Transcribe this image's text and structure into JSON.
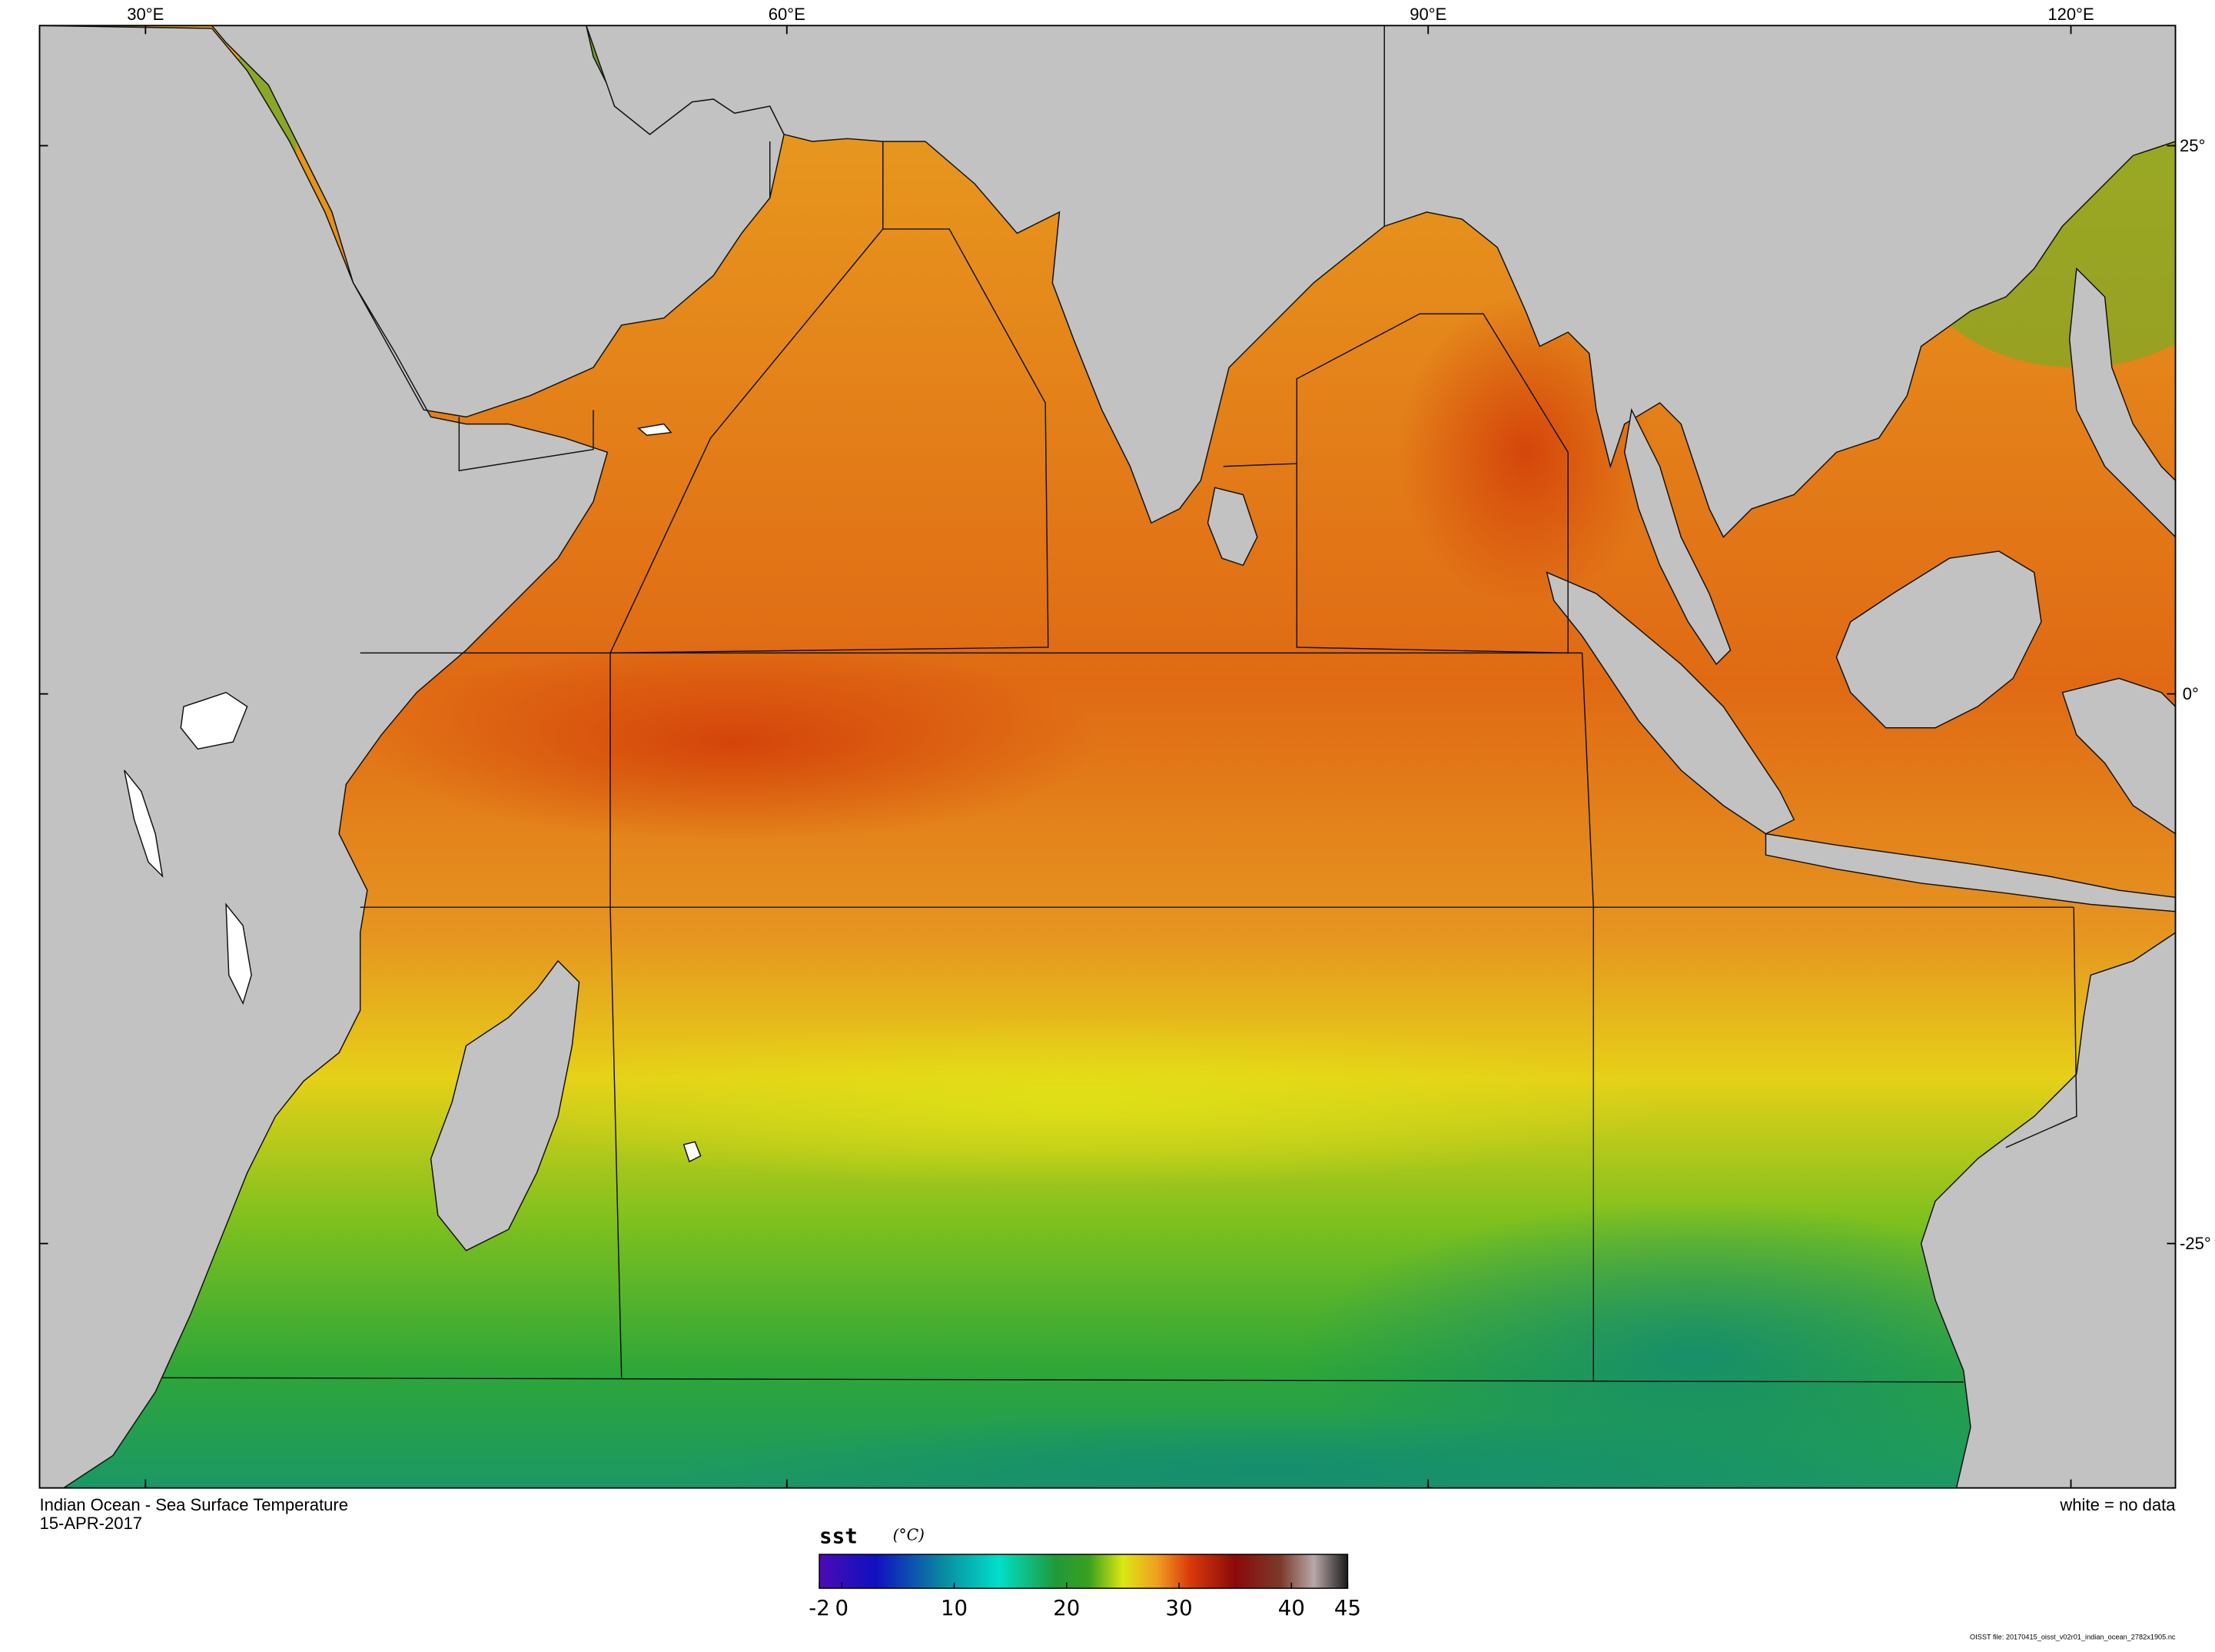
{
  "title": "Indian Ocean - Sea Surface Temperature",
  "date": "15-APR-2017",
  "no_data_note": "white = no data",
  "source_file": "OISST file: 20170415_oisst_v02r01_indian_ocean_2782x1905.nc",
  "longitude_ticks": [
    "30°E",
    "60°E",
    "90°E",
    "120°E"
  ],
  "latitude_ticks": [
    "25°",
    "0°",
    "-25°"
  ],
  "colorbar": {
    "variable": "sst",
    "units": "(°C)",
    "tick_labels": [
      "-2",
      "0",
      "10",
      "20",
      "30",
      "40",
      "45"
    ],
    "range": [
      -2,
      45
    ],
    "stops": [
      {
        "value": -2,
        "color": "#4b0bb5"
      },
      {
        "value": 3,
        "color": "#1010c0"
      },
      {
        "value": 9,
        "color": "#0a8aa0"
      },
      {
        "value": 14,
        "color": "#00e0c8"
      },
      {
        "value": 19,
        "color": "#1f9a3a"
      },
      {
        "value": 22,
        "color": "#3aa020"
      },
      {
        "value": 25,
        "color": "#dce812"
      },
      {
        "value": 28,
        "color": "#f0a020"
      },
      {
        "value": 31,
        "color": "#d83a0a"
      },
      {
        "value": 35,
        "color": "#8a0a0a"
      },
      {
        "value": 39,
        "color": "#7a3a2a"
      },
      {
        "value": 42,
        "color": "#b8a8a8"
      },
      {
        "value": 45,
        "color": "#1a1a1a"
      }
    ]
  },
  "colors": {
    "land": "#c2c2c2",
    "warm_ocean": "#e3821a",
    "hot_ocean": "#d44a0a",
    "temperate_ocean": "#e6c018",
    "cool_ocean": "#38a530",
    "cold_ocean": "#1a9a6a"
  }
}
